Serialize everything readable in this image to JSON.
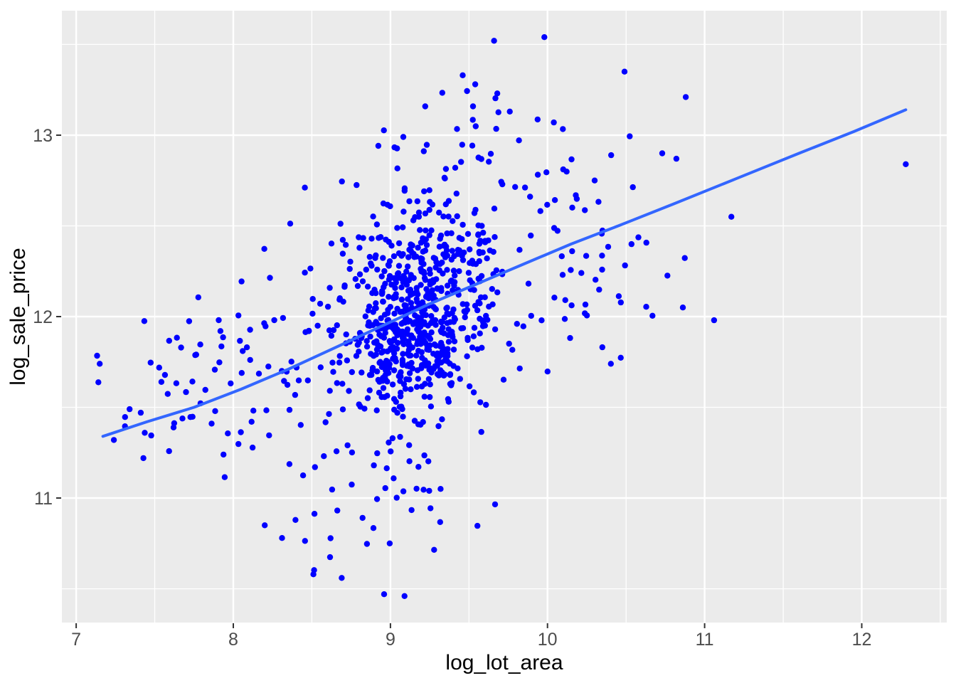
{
  "chart_data": {
    "type": "scatter",
    "title": "",
    "xlabel": "log_lot_area",
    "ylabel": "log_sale_price",
    "grid": true,
    "legend_position": "none",
    "x_axis": {
      "ticks": [
        7,
        8,
        9,
        10,
        11,
        12
      ],
      "minor_ticks": [
        7.5,
        8.5,
        9.5,
        10.5,
        11.5,
        12.5
      ],
      "range": [
        6.909,
        12.541
      ]
    },
    "y_axis": {
      "ticks": [
        11,
        12,
        13
      ],
      "minor_ticks": [
        10.5,
        11.5,
        12.5,
        13.5
      ],
      "range": [
        10.314,
        13.686
      ]
    },
    "style": {
      "figure_bg": "#FFFFFF",
      "panel_bg": "#EBEBEB",
      "grid_color": "#FFFFFF",
      "grid_major_width": 2.4,
      "grid_minor_width": 1.3,
      "tick_mark_color": "#333333",
      "tick_label_color": "#4D4D4D",
      "axis_title_color": "#000000"
    },
    "series": [
      {
        "name": "observations",
        "type": "points",
        "color": "#0000FF",
        "point_radius": 4.2,
        "n_points_estimate": 956,
        "point_cloud": {
          "seed": 42,
          "clip": {
            "x": [
              7.02,
              12.35
            ],
            "y": [
              10.45,
              13.45
            ]
          },
          "clusters": [
            {
              "label": "dense-core",
              "cx": 9.17,
              "cy": 11.9,
              "sx": 0.21,
              "sy": 0.2,
              "rho": 0.15,
              "n": 400
            },
            {
              "label": "core-upper",
              "cx": 9.22,
              "cy": 12.33,
              "sx": 0.22,
              "sy": 0.16,
              "rho": 0.1,
              "n": 140
            },
            {
              "label": "halo",
              "cx": 9.05,
              "cy": 12.0,
              "sx": 0.5,
              "sy": 0.42,
              "rho": 0.45,
              "n": 230
            },
            {
              "label": "left-arm",
              "cx": 7.78,
              "cy": 11.68,
              "sx": 0.3,
              "sy": 0.27,
              "rho": 0.35,
              "n": 62,
              "xlim": [
                7.08,
                8.35
              ],
              "ylim": [
                11.1,
                12.25
              ]
            },
            {
              "label": "right-sparse",
              "cx": 10.35,
              "cy": 12.3,
              "sx": 0.3,
              "sy": 0.32,
              "rho": 0.25,
              "n": 38,
              "xlim": [
                9.95,
                10.9
              ],
              "ylim": [
                11.6,
                13.0
              ]
            },
            {
              "label": "top-sparse",
              "cx": 9.5,
              "cy": 12.92,
              "sx": 0.32,
              "sy": 0.16,
              "rho": 0.0,
              "n": 30,
              "ylim": [
                12.68,
                13.3
              ]
            },
            {
              "label": "bottom-sparse",
              "cx": 9.0,
              "cy": 11.02,
              "sx": 0.3,
              "sy": 0.2,
              "rho": 0.0,
              "n": 32,
              "xlim": [
                8.2,
                9.9
              ],
              "ylim": [
                10.6,
                11.38
              ]
            }
          ]
        },
        "highlight_points": [
          [
            9.46,
            13.33
          ],
          [
            9.54,
            13.28
          ],
          [
            9.66,
            13.52
          ],
          [
            9.68,
            13.23
          ],
          [
            9.76,
            13.13
          ],
          [
            9.98,
            13.54
          ],
          [
            10.04,
            13.07
          ],
          [
            10.49,
            13.35
          ],
          [
            10.88,
            13.21
          ],
          [
            10.73,
            12.9
          ],
          [
            10.82,
            12.87
          ],
          [
            11.17,
            12.55
          ],
          [
            11.06,
            11.98
          ],
          [
            12.28,
            12.84
          ],
          [
            10.3,
            12.75
          ],
          [
            7.15,
            11.74
          ],
          [
            7.24,
            11.32
          ],
          [
            7.34,
            11.49
          ],
          [
            8.2,
            10.85
          ],
          [
            8.31,
            10.78
          ],
          [
            8.51,
            10.58
          ],
          [
            8.69,
            10.56
          ],
          [
            8.96,
            10.47
          ],
          [
            9.09,
            10.46
          ]
        ]
      },
      {
        "name": "smooth-trend",
        "type": "line",
        "color": "#3366FF",
        "stroke_width": 4,
        "points": [
          [
            7.17,
            11.34
          ],
          [
            7.45,
            11.42
          ],
          [
            7.75,
            11.5
          ],
          [
            8.05,
            11.6
          ],
          [
            8.35,
            11.71
          ],
          [
            8.65,
            11.83
          ],
          [
            8.95,
            11.95
          ],
          [
            9.25,
            12.07
          ],
          [
            9.55,
            12.18
          ],
          [
            9.85,
            12.29
          ],
          [
            10.15,
            12.4
          ],
          [
            10.45,
            12.5
          ],
          [
            10.8,
            12.62
          ],
          [
            11.2,
            12.76
          ],
          [
            11.6,
            12.9
          ],
          [
            11.95,
            13.02
          ],
          [
            12.28,
            13.14
          ]
        ]
      }
    ]
  }
}
